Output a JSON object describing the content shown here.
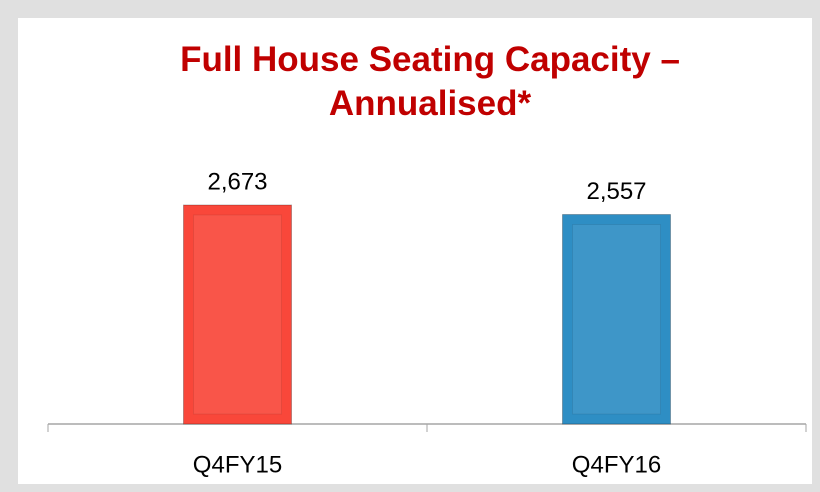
{
  "chart_data": {
    "type": "bar",
    "title": "Full House Seating Capacity – Annualised*",
    "categories": [
      "Q4FY15",
      "Q4FY16"
    ],
    "values": [
      2673,
      2557
    ],
    "value_labels": [
      "2,673",
      "2,557"
    ],
    "colors": [
      "#f9473a",
      "#2e8ec4"
    ]
  }
}
